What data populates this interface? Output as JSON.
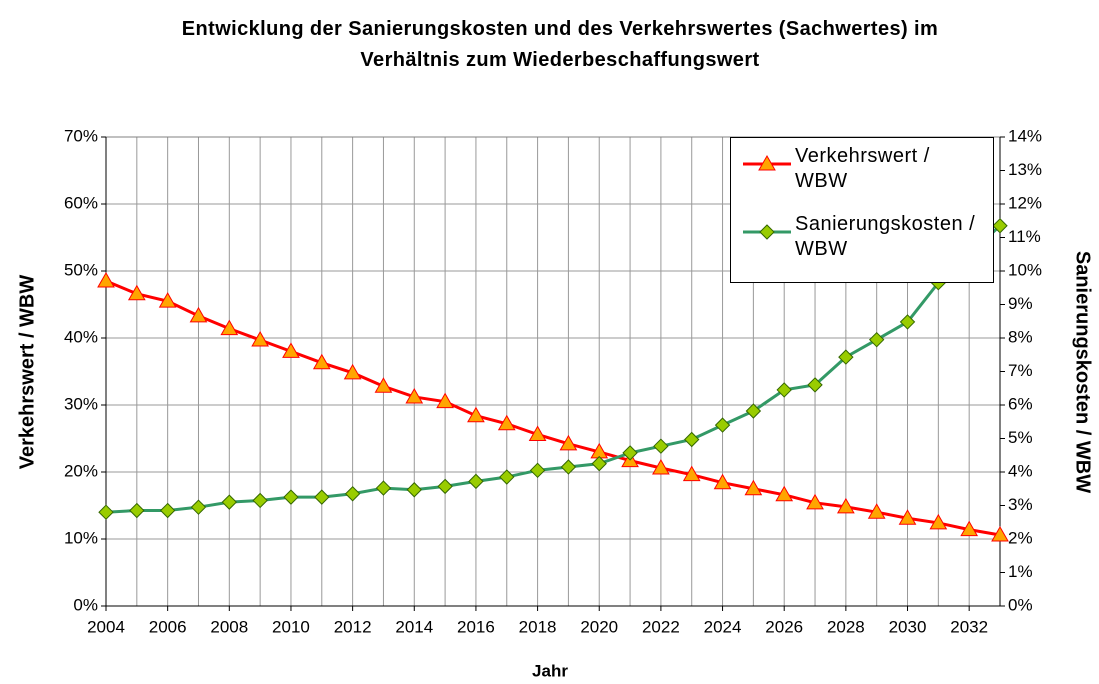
{
  "chart_data": {
    "type": "line",
    "title": "Entwicklung der Sanierungskosten und des Verkehrswertes (Sachwertes) im Verhältnis zum Wiederbeschaffungswert",
    "xlabel": "Jahr",
    "ylabel": "Verkehrswert / WBW",
    "y2label": "Sanierungskosten / WBW",
    "x": [
      2004,
      2005,
      2006,
      2007,
      2008,
      2009,
      2010,
      2011,
      2012,
      2013,
      2014,
      2015,
      2016,
      2017,
      2018,
      2019,
      2020,
      2021,
      2022,
      2023,
      2024,
      2025,
      2026,
      2027,
      2028,
      2029,
      2030,
      2031,
      2032,
      2033
    ],
    "series": [
      {
        "name": "Verkehrswert / WBW",
        "color": "#ff0000",
        "marker": "triangle",
        "marker_color": "#ffa500",
        "values": [
          48.5,
          46.6,
          45.5,
          43.3,
          41.4,
          39.7,
          38,
          36.3,
          34.8,
          32.8,
          31.2,
          30.5,
          28.4,
          27.2,
          25.6,
          24.2,
          23,
          21.7,
          20.6,
          19.6,
          18.4,
          17.5,
          16.6,
          15.4,
          14.8,
          14,
          13.1,
          12.4,
          11.4,
          10.6
        ]
      },
      {
        "name": "Sanierungskosten / WBW",
        "color": "#339966",
        "marker": "diamond",
        "marker_color": "#99cc00",
        "axis": "y2",
        "values": [
          2.8,
          2.85,
          2.85,
          2.95,
          3.1,
          3.15,
          3.25,
          3.25,
          3.35,
          3.52,
          3.47,
          3.57,
          3.72,
          3.85,
          4.05,
          4.15,
          4.25,
          4.57,
          4.77,
          4.97,
          5.4,
          5.82,
          6.45,
          6.6,
          7.43,
          7.95,
          8.48,
          9.65,
          10.5,
          11.35
        ]
      }
    ],
    "xlim": [
      2004,
      2033
    ],
    "xticks": [
      2004,
      2006,
      2008,
      2010,
      2012,
      2014,
      2016,
      2018,
      2020,
      2022,
      2024,
      2026,
      2028,
      2030,
      2032
    ],
    "ylim": [
      0,
      70
    ],
    "yticks": [
      {
        "value": 0,
        "label": "0%"
      },
      {
        "value": 10,
        "label": "10%"
      },
      {
        "value": 20,
        "label": "20%"
      },
      {
        "value": 30,
        "label": "30%"
      },
      {
        "value": 40,
        "label": "40%"
      },
      {
        "value": 50,
        "label": "50%"
      },
      {
        "value": 60,
        "label": "60%"
      },
      {
        "value": 70,
        "label": "70%"
      }
    ],
    "y2lim": [
      0,
      14
    ],
    "y2ticks": [
      {
        "value": 0,
        "label": "0%"
      },
      {
        "value": 1,
        "label": "1%"
      },
      {
        "value": 2,
        "label": "2%"
      },
      {
        "value": 3,
        "label": "3%"
      },
      {
        "value": 4,
        "label": "4%"
      },
      {
        "value": 5,
        "label": "5%"
      },
      {
        "value": 6,
        "label": "6%"
      },
      {
        "value": 7,
        "label": "7%"
      },
      {
        "value": 8,
        "label": "8%"
      },
      {
        "value": 9,
        "label": "9%"
      },
      {
        "value": 10,
        "label": "10%"
      },
      {
        "value": 11,
        "label": "11%"
      },
      {
        "value": 12,
        "label": "12%"
      },
      {
        "value": 13,
        "label": "13%"
      },
      {
        "value": 14,
        "label": "14%"
      }
    ],
    "grid": true,
    "legend": "upper right"
  }
}
